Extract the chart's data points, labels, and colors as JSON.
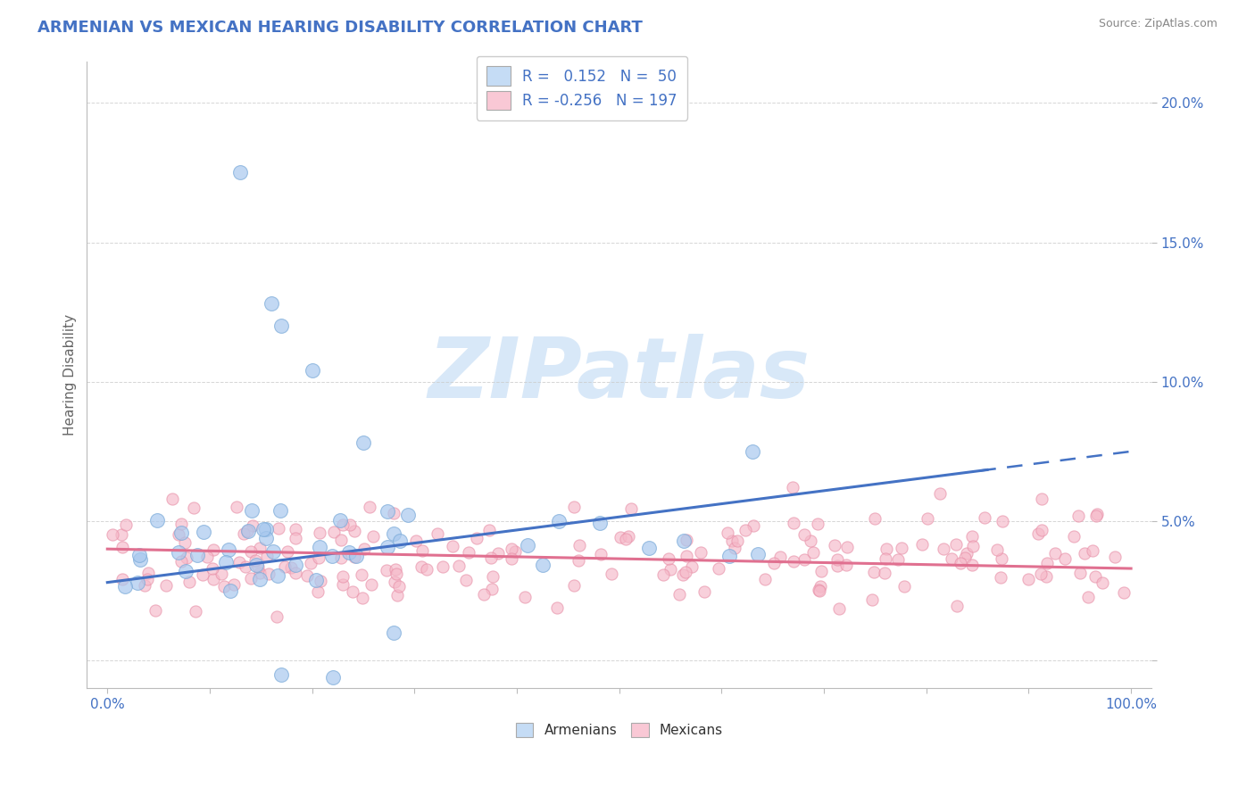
{
  "title": "ARMENIAN VS MEXICAN HEARING DISABILITY CORRELATION CHART",
  "source": "Source: ZipAtlas.com",
  "ylabel": "Hearing Disability",
  "armenian_R": 0.152,
  "armenian_N": 50,
  "mexican_R": -0.256,
  "mexican_N": 197,
  "title_color": "#4472C4",
  "armenian_dot_facecolor": "#A8C8EE",
  "armenian_dot_edgecolor": "#7AAAD8",
  "armenian_line_color": "#4472C4",
  "mexican_dot_facecolor": "#F5B8C8",
  "mexican_dot_edgecolor": "#E890A8",
  "mexican_line_color": "#E07090",
  "legend_armenian_face": "#C5DCF5",
  "legend_mexican_face": "#F9C8D5",
  "watermark_text": "ZIPatlas",
  "watermark_color": "#D8E8F8",
  "background_color": "#FFFFFF",
  "grid_color": "#CCCCCC",
  "tick_color": "#4472C4",
  "ylabel_color": "#666666",
  "source_color": "#888888",
  "xlim": [
    -0.02,
    1.02
  ],
  "ylim": [
    -0.01,
    0.215
  ],
  "ytick_vals": [
    0.0,
    0.05,
    0.1,
    0.15,
    0.2
  ],
  "ytick_labels": [
    "",
    "5.0%",
    "10.0%",
    "15.0%",
    "20.0%"
  ],
  "arm_line_start_x": 0.0,
  "arm_line_end_solid_x": 0.86,
  "arm_line_end_x": 1.0,
  "arm_line_start_y": 0.028,
  "arm_line_end_y": 0.075,
  "mex_line_start_y": 0.04,
  "mex_line_end_y": 0.033
}
